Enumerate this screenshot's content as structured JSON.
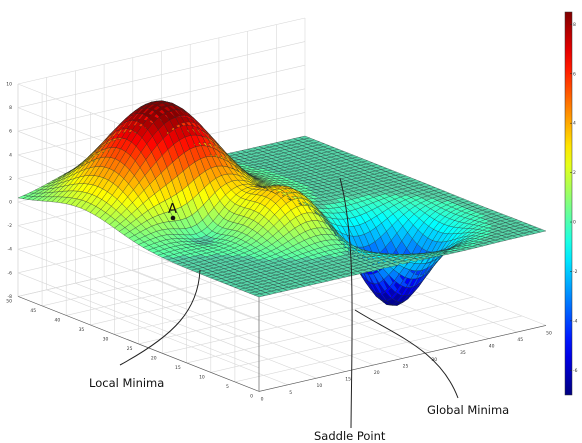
{
  "chart_data": {
    "type": "surface3d",
    "title": "",
    "xlabel": "",
    "ylabel": "",
    "zlabel": "",
    "grid": true,
    "colormap": "jet",
    "x_ticks": [
      "0",
      "5",
      "10",
      "15",
      "20",
      "25",
      "30",
      "35",
      "40",
      "45",
      "50"
    ],
    "y_ticks": [
      "0",
      "5",
      "10",
      "15",
      "20",
      "25",
      "30",
      "35",
      "40",
      "45",
      "50"
    ],
    "z_ticks": [
      "10",
      "8",
      "6",
      "4",
      "2",
      "0",
      "-2",
      "-4",
      "-6",
      "-8"
    ],
    "zlim": [
      -8,
      10
    ],
    "colorbar": {
      "position": "right",
      "ticks": [
        "8",
        "6",
        "4",
        "2",
        "0",
        "-2",
        "-4",
        "-6"
      ],
      "range": [
        -7,
        8.5
      ]
    },
    "surface": {
      "grid_size": 50,
      "features": [
        {
          "kind": "peak",
          "x": 14,
          "y": 37,
          "z": 9.0
        },
        {
          "kind": "peak",
          "x": 21,
          "y": 19,
          "z": 3.5
        },
        {
          "kind": "well",
          "x": 11,
          "y": 26,
          "z": -2.2
        },
        {
          "kind": "well",
          "x": 35,
          "y": 14,
          "z": -6.9
        }
      ]
    },
    "point_marker": {
      "label": "A",
      "x": 6,
      "y": 28
    },
    "annotations": [
      {
        "label": "Local Minima"
      },
      {
        "label": "Saddle Point"
      },
      {
        "label": "Global Minima"
      }
    ]
  }
}
